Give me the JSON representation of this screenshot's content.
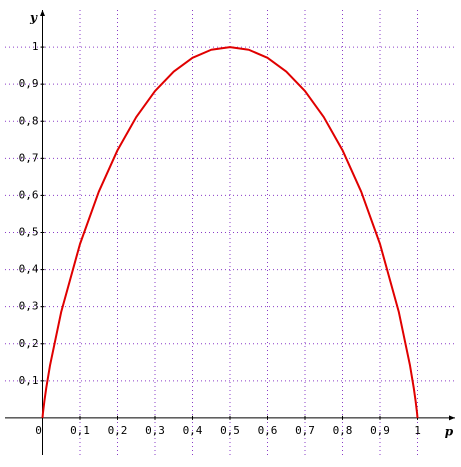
{
  "chart_data": {
    "type": "line",
    "xlabel": "p",
    "ylabel": "y",
    "x": [
      0,
      0.001,
      0.005,
      0.01,
      0.02,
      0.05,
      0.1,
      0.15,
      0.2,
      0.25,
      0.3,
      0.35,
      0.4,
      0.45,
      0.5,
      0.55,
      0.6,
      0.65,
      0.7,
      0.75,
      0.8,
      0.85,
      0.9,
      0.95,
      0.98,
      0.99,
      0.995,
      0.999,
      1
    ],
    "series": [
      {
        "color": "#e00000",
        "values": [
          0,
          0.0114,
          0.0454,
          0.0808,
          0.1414,
          0.2864,
          0.469,
          0.6098,
          0.7219,
          0.8113,
          0.8813,
          0.9341,
          0.971,
          0.9928,
          1,
          0.9928,
          0.971,
          0.9341,
          0.8813,
          0.8113,
          0.7219,
          0.6098,
          0.469,
          0.2864,
          0.1414,
          0.0808,
          0.0454,
          0.0114,
          0
        ]
      }
    ],
    "xlim": [
      -0.1,
      1.1
    ],
    "ylim": [
      -0.1,
      1.1
    ],
    "xticks": [
      0,
      {
        "value": 0.1,
        "label": "0,1"
      },
      {
        "value": 0.2,
        "label": "0,2"
      },
      {
        "value": 0.3,
        "label": "0,3"
      },
      {
        "value": 0.4,
        "label": "0,4"
      },
      {
        "value": 0.5,
        "label": "0,5"
      },
      {
        "value": 0.6,
        "label": "0,6"
      },
      {
        "value": 0.7,
        "label": "0,7"
      },
      {
        "value": 0.8,
        "label": "0,8"
      },
      {
        "value": 0.9,
        "label": "0,9"
      },
      1
    ],
    "yticks": [
      {
        "value": 0.1,
        "label": "0,1"
      },
      {
        "value": 0.2,
        "label": "0,2"
      },
      {
        "value": 0.3,
        "label": "0,3"
      },
      {
        "value": 0.4,
        "label": "0,4"
      },
      {
        "value": 0.5,
        "label": "0,5"
      },
      {
        "value": 0.6,
        "label": "0,6"
      },
      {
        "value": 0.7,
        "label": "0,7"
      },
      {
        "value": 0.8,
        "label": "0,8"
      },
      {
        "value": 0.9,
        "label": "0,9"
      },
      1
    ],
    "grid": true
  }
}
